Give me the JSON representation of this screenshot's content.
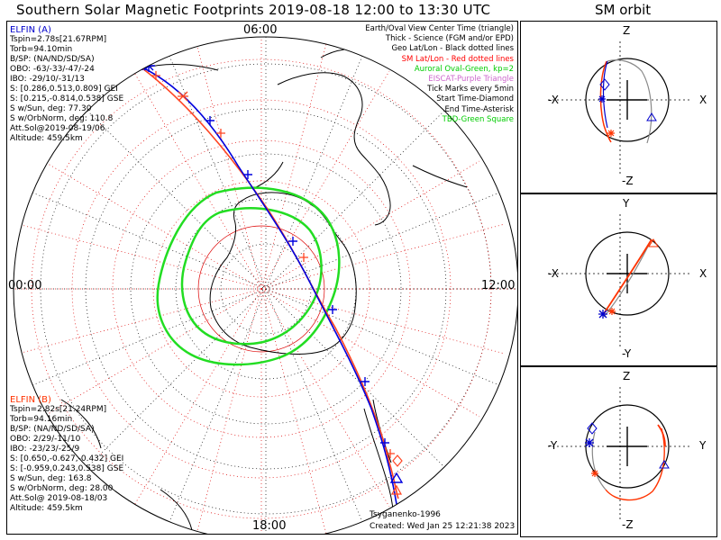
{
  "title": "Southern Solar Magnetic Footprints 2019-08-18 12:00 to 13:30 UTC",
  "orbit_title": "SM orbit",
  "colors": {
    "elfin_a": "#0000cc",
    "elfin_b": "#ff3300",
    "oval": "#00dd00",
    "geo_grid": "#000000",
    "sm_grid": "#cc0000"
  },
  "hours": {
    "top": "06:00",
    "left": "00:00",
    "right": "12:00",
    "bottom": "18:00"
  },
  "elfin_a": {
    "name": "ELFIN (A)",
    "lines": [
      "Tspin=2.78s[21.67RPM]",
      "Torb=94.10min",
      "B/SP: (NA/ND/SD/SA)",
      "OBO: -63/-33/-47/-24",
      "IBO: -29/10/-31/13",
      "S: [0.286,0.513,0.809] GEI",
      "S: [0.215,-0.814,0.538] GSE",
      "S w/Sun, deg: 77.30",
      "S w/OrbNorm, deg: 110.8",
      "Att.Sol@2019-08-19/06",
      "Altitude: 459.5km"
    ]
  },
  "elfin_b": {
    "name": "ELFIN (B)",
    "lines": [
      "Tspin=2.82s[21.24RPM]",
      "Torb=94.16min",
      "B/SP: (NA/ND/SD/SA)",
      "OBO: 2/29/-11/10",
      "IBO: -23/23/-25/9",
      "S: [0.650,-0.627,-0.432] GEI",
      "S: [-0.959,0.243,0.538] GSE",
      "S w/Sun, deg: 163.8",
      "S w/OrbNorm, deg: 28.00",
      "Att.Sol@ 2019-08-18/03",
      "Altitude: 459.5km"
    ]
  },
  "legend": [
    {
      "text": "Earth/Oval View Center Time (triangle)",
      "color": "#000000"
    },
    {
      "text": "Thick - Science (FGM and/or EPD)",
      "color": "#000000"
    },
    {
      "text": "Geo Lat/Lon - Black dotted lines",
      "color": "#000000"
    },
    {
      "text": "SM Lat/Lon - Red dotted lines",
      "color": "#ff0000"
    },
    {
      "text": "Auroral Oval-Green, kp=2",
      "color": "#00cc00"
    },
    {
      "text": "EISCAT-Purple Triangle",
      "color": "#cc66cc"
    },
    {
      "text": "Tick Marks every 5min",
      "color": "#000000"
    },
    {
      "text": "Start Time-Diamond",
      "color": "#000000"
    },
    {
      "text": "End Time-Asterisk",
      "color": "#000000"
    },
    {
      "text": "TBD-Green Square",
      "color": "#00cc00"
    }
  ],
  "footer": {
    "model": "Tsyganenko-1996",
    "created": "Created: Wed Jan 25 12:21:38 2023"
  },
  "panels": [
    {
      "name": "xz",
      "top": "Z",
      "bottom": "-Z",
      "left": "-X",
      "right": "X"
    },
    {
      "name": "xy",
      "top": "Y",
      "bottom": "-Y",
      "left": "-X",
      "right": "X"
    },
    {
      "name": "yz",
      "top": "Z",
      "bottom": "-Z",
      "left": "-Y",
      "right": "Y"
    }
  ]
}
